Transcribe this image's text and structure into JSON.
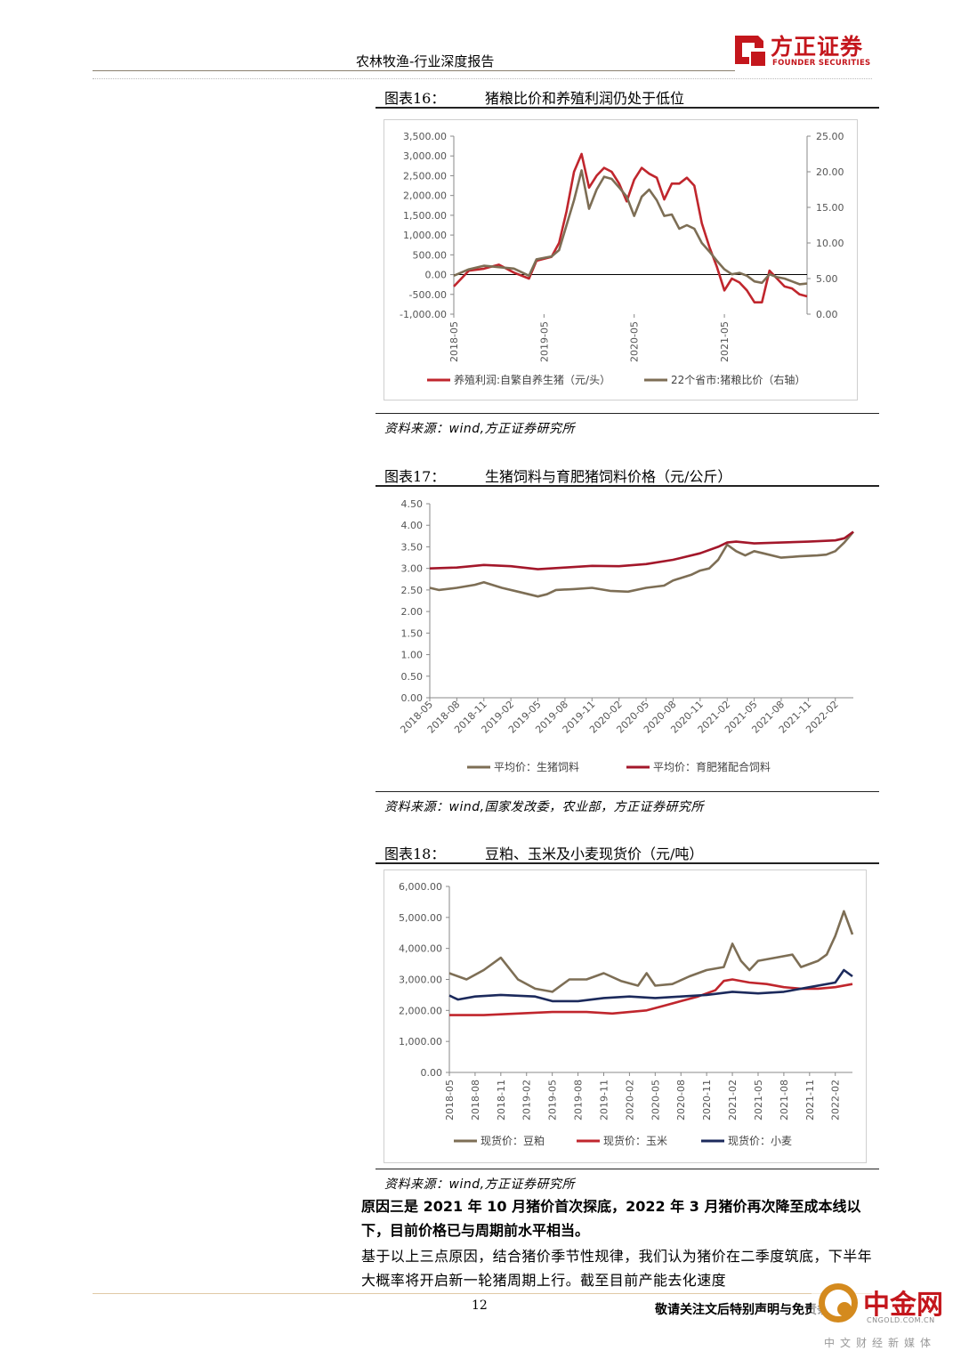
{
  "header": {
    "report_title": "农林牧渔-行业深度报告",
    "logo_cn": "方正证券",
    "logo_en": "FOUNDER SECURITIES"
  },
  "figures": [
    {
      "title_num": "图表16：",
      "title_text": "猪粮比价和养殖利润仍处于低位",
      "source": "资料来源：wind,方正证券研究所"
    },
    {
      "title_num": "图表17：",
      "title_text": "生猪饲料与育肥猪饲料价格（元/公斤）",
      "source": "资料来源：wind,国家发改委，农业部，方正证券研究所"
    },
    {
      "title_num": "图表18：",
      "title_text": "豆粕、玉米及小麦现货价（元/吨）",
      "source": "资料来源：wind,方正证券研究所"
    }
  ],
  "body": {
    "bold_para": "原因三是 2021 年 10 月猪价首次探底，2022 年 3 月猪价再次降至成本线以下，目前价格已与周期前水平相当。",
    "para": "基于以上三点原因，结合猪价季节性规律，我们认为猪价在二季度筑底，下半年大概率将开启新一轮猪周期上行。截至目前产能去化速度"
  },
  "footer": {
    "page_number": "12",
    "note": "敬请关注文后特别声明与免责条款"
  },
  "watermark": {
    "brand": "中金网",
    "url": "CNGOLD.COM.CN",
    "tagline": "中文财经新媒体"
  },
  "chart_data": [
    {
      "type": "line",
      "x_ticks": [
        "2018-05",
        "2019-05",
        "2020-05",
        "2021-05"
      ],
      "y_left_ticks": [
        "3,500.00",
        "3,000.00",
        "2,500.00",
        "2,000.00",
        "1,500.00",
        "1,000.00",
        "500.00",
        "0.00",
        "-500.00",
        "-1,000.00"
      ],
      "y_right_ticks": [
        "25.00",
        "20.00",
        "15.00",
        "10.00",
        "5.00",
        "0.00"
      ],
      "ylim_left": [
        -1000,
        3500
      ],
      "ylim_right": [
        0,
        25
      ],
      "x_start": "2018-05",
      "x_end": "2022-04",
      "legend_position": "bottom",
      "series": [
        {
          "name": "养殖利润:自繁自养生猪（元/头）",
          "axis": "left",
          "color": "#c0262d",
          "points": [
            [
              "2018-05",
              -300
            ],
            [
              "2018-07",
              100
            ],
            [
              "2018-09",
              150
            ],
            [
              "2018-11",
              250
            ],
            [
              "2019-01",
              50
            ],
            [
              "2019-03",
              -100
            ],
            [
              "2019-04",
              350
            ],
            [
              "2019-06",
              450
            ],
            [
              "2019-07",
              800
            ],
            [
              "2019-08",
              1600
            ],
            [
              "2019-09",
              2600
            ],
            [
              "2019-10",
              3050
            ],
            [
              "2019-11",
              2200
            ],
            [
              "2019-12",
              2500
            ],
            [
              "2020-01",
              2700
            ],
            [
              "2020-02",
              2600
            ],
            [
              "2020-03",
              2300
            ],
            [
              "2020-04",
              1850
            ],
            [
              "2020-05",
              2400
            ],
            [
              "2020-06",
              2700
            ],
            [
              "2020-07",
              2550
            ],
            [
              "2020-08",
              2450
            ],
            [
              "2020-09",
              1900
            ],
            [
              "2020-10",
              2300
            ],
            [
              "2020-11",
              2300
            ],
            [
              "2020-12",
              2450
            ],
            [
              "2021-01",
              2250
            ],
            [
              "2021-02",
              1300
            ],
            [
              "2021-03",
              700
            ],
            [
              "2021-04",
              200
            ],
            [
              "2021-05",
              -400
            ],
            [
              "2021-06",
              -100
            ],
            [
              "2021-07",
              -200
            ],
            [
              "2021-08",
              -400
            ],
            [
              "2021-09",
              -700
            ],
            [
              "2021-10",
              -700
            ],
            [
              "2021-11",
              100
            ],
            [
              "2021-12",
              -100
            ],
            [
              "2022-01",
              -300
            ],
            [
              "2022-02",
              -350
            ],
            [
              "2022-03",
              -500
            ],
            [
              "2022-04",
              -550
            ]
          ]
        },
        {
          "name": "22个省市:猪粮比价（右轴）",
          "axis": "right",
          "color": "#7d6e55",
          "points": [
            [
              "2018-05",
              5.4
            ],
            [
              "2018-07",
              6.3
            ],
            [
              "2018-09",
              6.8
            ],
            [
              "2018-11",
              6.6
            ],
            [
              "2019-01",
              6.4
            ],
            [
              "2019-03",
              5.4
            ],
            [
              "2019-04",
              7.7
            ],
            [
              "2019-06",
              8.1
            ],
            [
              "2019-07",
              9.0
            ],
            [
              "2019-08",
              12.5
            ],
            [
              "2019-09",
              16.0
            ],
            [
              "2019-10",
              20.2
            ],
            [
              "2019-11",
              14.8
            ],
            [
              "2019-12",
              17.5
            ],
            [
              "2020-01",
              19.3
            ],
            [
              "2020-02",
              19.0
            ],
            [
              "2020-03",
              17.8
            ],
            [
              "2020-04",
              16.5
            ],
            [
              "2020-05",
              13.8
            ],
            [
              "2020-06",
              16.5
            ],
            [
              "2020-07",
              17.5
            ],
            [
              "2020-08",
              16.0
            ],
            [
              "2020-09",
              13.8
            ],
            [
              "2020-10",
              14.0
            ],
            [
              "2020-11",
              12.0
            ],
            [
              "2020-12",
              12.5
            ],
            [
              "2021-01",
              12.0
            ],
            [
              "2021-02",
              10.0
            ],
            [
              "2021-03",
              8.8
            ],
            [
              "2021-04",
              7.5
            ],
            [
              "2021-05",
              6.3
            ],
            [
              "2021-06",
              5.6
            ],
            [
              "2021-07",
              5.8
            ],
            [
              "2021-08",
              5.4
            ],
            [
              "2021-09",
              4.6
            ],
            [
              "2021-10",
              4.4
            ],
            [
              "2021-11",
              5.6
            ],
            [
              "2021-12",
              5.2
            ],
            [
              "2022-01",
              5.0
            ],
            [
              "2022-02",
              4.6
            ],
            [
              "2022-03",
              4.2
            ],
            [
              "2022-04",
              4.3
            ]
          ]
        }
      ]
    },
    {
      "type": "line",
      "x_ticks": [
        "2018-05",
        "2018-08",
        "2018-11",
        "2019-02",
        "2019-05",
        "2019-08",
        "2019-11",
        "2020-02",
        "2020-05",
        "2020-08",
        "2020-11",
        "2021-02",
        "2021-05",
        "2021-08",
        "2021-11",
        "2022-02"
      ],
      "y_ticks": [
        "4.50",
        "4.00",
        "3.50",
        "3.00",
        "2.50",
        "2.00",
        "1.50",
        "1.00",
        "0.50",
        "0.00"
      ],
      "ylim": [
        0,
        4.5
      ],
      "x_start": "2018-05",
      "x_end": "2022-04",
      "legend_position": "bottom",
      "series": [
        {
          "name": "平均价：生猪饲料",
          "color": "#7d6e55",
          "points": [
            [
              "2018-05",
              2.55
            ],
            [
              "2018-06",
              2.5
            ],
            [
              "2018-08",
              2.55
            ],
            [
              "2018-10",
              2.62
            ],
            [
              "2018-11",
              2.68
            ],
            [
              "2019-01",
              2.55
            ],
            [
              "2019-03",
              2.45
            ],
            [
              "2019-05",
              2.35
            ],
            [
              "2019-06",
              2.4
            ],
            [
              "2019-07",
              2.5
            ],
            [
              "2019-09",
              2.52
            ],
            [
              "2019-11",
              2.55
            ],
            [
              "2020-01",
              2.48
            ],
            [
              "2020-03",
              2.46
            ],
            [
              "2020-05",
              2.55
            ],
            [
              "2020-07",
              2.6
            ],
            [
              "2020-08",
              2.72
            ],
            [
              "2020-10",
              2.85
            ],
            [
              "2020-11",
              2.95
            ],
            [
              "2020-12",
              3.0
            ],
            [
              "2021-01",
              3.2
            ],
            [
              "2021-02",
              3.55
            ],
            [
              "2021-03",
              3.4
            ],
            [
              "2021-04",
              3.3
            ],
            [
              "2021-05",
              3.4
            ],
            [
              "2021-06",
              3.35
            ],
            [
              "2021-08",
              3.25
            ],
            [
              "2021-10",
              3.28
            ],
            [
              "2021-12",
              3.3
            ],
            [
              "2022-01",
              3.32
            ],
            [
              "2022-02",
              3.4
            ],
            [
              "2022-03",
              3.6
            ],
            [
              "2022-04",
              3.85
            ]
          ]
        },
        {
          "name": "平均价：育肥猪配合饲料",
          "color": "#a3172a",
          "points": [
            [
              "2018-05",
              3.0
            ],
            [
              "2018-08",
              3.02
            ],
            [
              "2018-11",
              3.08
            ],
            [
              "2019-02",
              3.05
            ],
            [
              "2019-05",
              2.98
            ],
            [
              "2019-08",
              3.02
            ],
            [
              "2019-11",
              3.06
            ],
            [
              "2020-02",
              3.05
            ],
            [
              "2020-05",
              3.1
            ],
            [
              "2020-08",
              3.2
            ],
            [
              "2020-11",
              3.35
            ],
            [
              "2021-01",
              3.5
            ],
            [
              "2021-02",
              3.6
            ],
            [
              "2021-03",
              3.62
            ],
            [
              "2021-05",
              3.58
            ],
            [
              "2021-08",
              3.6
            ],
            [
              "2021-11",
              3.62
            ],
            [
              "2022-02",
              3.65
            ],
            [
              "2022-03",
              3.7
            ],
            [
              "2022-04",
              3.85
            ]
          ]
        }
      ]
    },
    {
      "type": "line",
      "x_ticks": [
        "2018-05",
        "2018-08",
        "2018-11",
        "2019-02",
        "2019-05",
        "2019-08",
        "2019-11",
        "2020-02",
        "2020-05",
        "2020-08",
        "2020-11",
        "2021-02",
        "2021-05",
        "2021-08",
        "2021-11",
        "2022-02"
      ],
      "y_ticks": [
        "6,000.00",
        "5,000.00",
        "4,000.00",
        "3,000.00",
        "2,000.00",
        "1,000.00",
        "0.00"
      ],
      "ylim": [
        0,
        6000
      ],
      "x_start": "2018-05",
      "x_end": "2022-04",
      "legend_position": "bottom",
      "series": [
        {
          "name": "现货价：豆粕",
          "color": "#7d6e55",
          "points": [
            [
              "2018-05",
              3200
            ],
            [
              "2018-07",
              3000
            ],
            [
              "2018-09",
              3300
            ],
            [
              "2018-11",
              3700
            ],
            [
              "2019-01",
              3000
            ],
            [
              "2019-03",
              2700
            ],
            [
              "2019-05",
              2600
            ],
            [
              "2019-07",
              3000
            ],
            [
              "2019-09",
              3000
            ],
            [
              "2019-11",
              3200
            ],
            [
              "2020-01",
              2950
            ],
            [
              "2020-03",
              2800
            ],
            [
              "2020-04",
              3200
            ],
            [
              "2020-05",
              2800
            ],
            [
              "2020-07",
              2850
            ],
            [
              "2020-09",
              3100
            ],
            [
              "2020-11",
              3300
            ],
            [
              "2021-01",
              3400
            ],
            [
              "2021-02",
              4150
            ],
            [
              "2021-03",
              3600
            ],
            [
              "2021-04",
              3300
            ],
            [
              "2021-05",
              3600
            ],
            [
              "2021-07",
              3700
            ],
            [
              "2021-09",
              3800
            ],
            [
              "2021-10",
              3400
            ],
            [
              "2021-12",
              3600
            ],
            [
              "2022-01",
              3800
            ],
            [
              "2022-02",
              4400
            ],
            [
              "2022-03",
              5200
            ],
            [
              "2022-04",
              4450
            ]
          ]
        },
        {
          "name": "现货价：玉米",
          "color": "#c0262d",
          "points": [
            [
              "2018-05",
              1850
            ],
            [
              "2018-09",
              1850
            ],
            [
              "2019-01",
              1900
            ],
            [
              "2019-05",
              1950
            ],
            [
              "2019-09",
              1950
            ],
            [
              "2019-12",
              1900
            ],
            [
              "2020-04",
              2000
            ],
            [
              "2020-06",
              2150
            ],
            [
              "2020-08",
              2300
            ],
            [
              "2020-10",
              2450
            ],
            [
              "2020-12",
              2650
            ],
            [
              "2021-01",
              2950
            ],
            [
              "2021-02",
              3000
            ],
            [
              "2021-04",
              2900
            ],
            [
              "2021-06",
              2850
            ],
            [
              "2021-08",
              2750
            ],
            [
              "2021-10",
              2700
            ],
            [
              "2021-12",
              2700
            ],
            [
              "2022-02",
              2750
            ],
            [
              "2022-04",
              2850
            ]
          ]
        },
        {
          "name": "现货价：小麦",
          "color": "#1c2a5c",
          "points": [
            [
              "2018-05",
              2480
            ],
            [
              "2018-06",
              2350
            ],
            [
              "2018-08",
              2450
            ],
            [
              "2018-11",
              2500
            ],
            [
              "2019-03",
              2450
            ],
            [
              "2019-05",
              2300
            ],
            [
              "2019-08",
              2300
            ],
            [
              "2019-11",
              2400
            ],
            [
              "2020-02",
              2450
            ],
            [
              "2020-05",
              2400
            ],
            [
              "2020-08",
              2450
            ],
            [
              "2020-11",
              2500
            ],
            [
              "2021-02",
              2600
            ],
            [
              "2021-05",
              2550
            ],
            [
              "2021-08",
              2600
            ],
            [
              "2021-11",
              2750
            ],
            [
              "2022-02",
              2900
            ],
            [
              "2022-03",
              3300
            ],
            [
              "2022-04",
              3100
            ]
          ]
        }
      ]
    }
  ]
}
